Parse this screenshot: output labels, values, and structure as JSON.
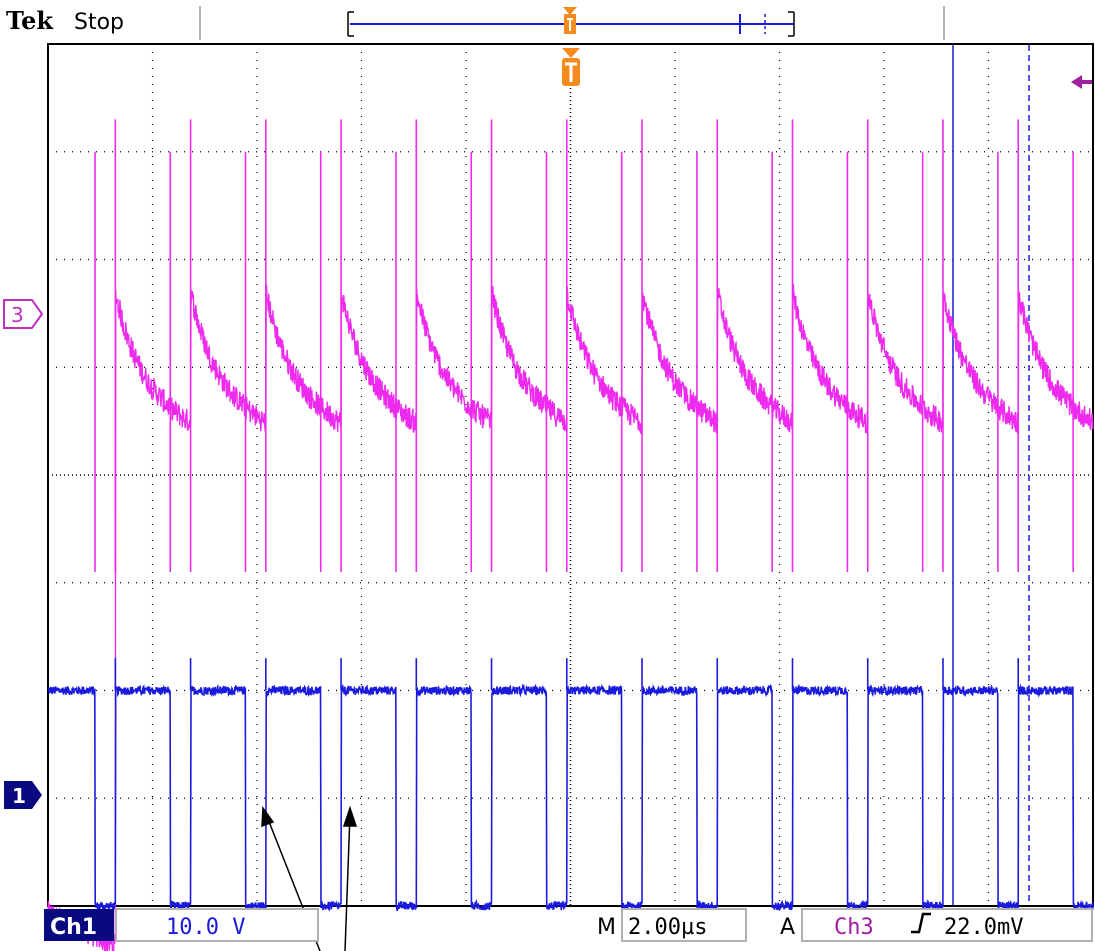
{
  "header": {
    "brand": "Tek",
    "run_state": "Stop"
  },
  "colors": {
    "ch1": "#1a1adc",
    "ch3": "#ee2aee",
    "trigger": "#f58a1e",
    "grid": "#000000",
    "background": "#ffffff"
  },
  "markers": {
    "ch3": "3",
    "ch1": "1",
    "trigger_marker": "T"
  },
  "footer": {
    "ch1_label": "Ch1",
    "ch1_scale": "10.0 V",
    "timebase_prefix": "M",
    "timebase": "2.00µs",
    "trigger_mode": "A",
    "trigger_source": "Ch3",
    "trigger_slope_icon": "rising-edge-icon",
    "trigger_level": "22.0mV"
  },
  "chart_data": {
    "type": "line",
    "x_unit": "divisions",
    "y_unit": "divisions",
    "xlim": [
      0,
      10
    ],
    "ylim": [
      0,
      8
    ],
    "grid": true,
    "grid_divisions": {
      "x": 10,
      "y": 8
    },
    "cursors": {
      "solid_x": 8.35,
      "dashed_x": 9.0
    },
    "ch1": {
      "name": "Ch1",
      "period_div": 0.72,
      "high_level_div": 2.0,
      "low_level_div": 0.0,
      "low_duty": 0.27,
      "first_fall_div": 0.45,
      "edge_spike_div": 2.3
    },
    "ch3": {
      "name": "Ch3",
      "baseline_div": 4.8,
      "peak_div": 7.0,
      "rise_spike_div": 7.3,
      "fall_spike_div": 3.1,
      "ramp_amplitude_div": 0.9
    }
  }
}
